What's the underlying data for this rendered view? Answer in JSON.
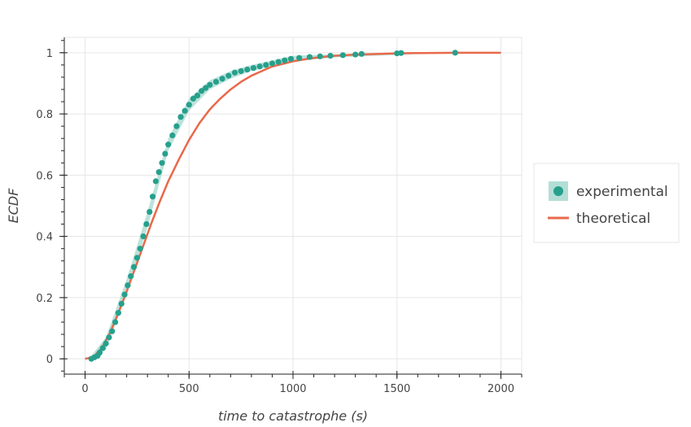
{
  "chart_data": {
    "type": "line",
    "xlabel": "time to catastrophe (s)",
    "ylabel": "ECDF",
    "xlim": [
      -100,
      2100
    ],
    "ylim": [
      -0.05,
      1.05
    ],
    "x_ticks": [
      0,
      500,
      1000,
      1500,
      2000
    ],
    "y_ticks": [
      0,
      0.2,
      0.4,
      0.6,
      0.8,
      1
    ],
    "x_tick_labels": [
      "0",
      "500",
      "1000",
      "1500",
      "2000"
    ],
    "y_tick_labels": [
      "0",
      "0.2",
      "0.4",
      "0.6",
      "0.8",
      "1"
    ],
    "grid": true,
    "legend_position": "right",
    "series": [
      {
        "name": "experimental",
        "kind": "scatter-with-band",
        "color": "#26a08c",
        "band_color": "#9fd6cc",
        "points": [
          [
            30,
            0.0
          ],
          [
            45,
            0.005
          ],
          [
            60,
            0.01
          ],
          [
            70,
            0.02
          ],
          [
            85,
            0.035
          ],
          [
            100,
            0.05
          ],
          [
            115,
            0.07
          ],
          [
            130,
            0.09
          ],
          [
            145,
            0.12
          ],
          [
            160,
            0.15
          ],
          [
            175,
            0.18
          ],
          [
            190,
            0.21
          ],
          [
            205,
            0.24
          ],
          [
            220,
            0.27
          ],
          [
            235,
            0.3
          ],
          [
            250,
            0.33
          ],
          [
            265,
            0.36
          ],
          [
            280,
            0.4
          ],
          [
            295,
            0.44
          ],
          [
            310,
            0.48
          ],
          [
            325,
            0.53
          ],
          [
            340,
            0.58
          ],
          [
            355,
            0.61
          ],
          [
            370,
            0.64
          ],
          [
            385,
            0.67
          ],
          [
            400,
            0.7
          ],
          [
            420,
            0.73
          ],
          [
            440,
            0.76
          ],
          [
            460,
            0.79
          ],
          [
            480,
            0.81
          ],
          [
            500,
            0.83
          ],
          [
            520,
            0.85
          ],
          [
            540,
            0.86
          ],
          [
            560,
            0.875
          ],
          [
            580,
            0.885
          ],
          [
            600,
            0.895
          ],
          [
            630,
            0.905
          ],
          [
            660,
            0.915
          ],
          [
            690,
            0.925
          ],
          [
            720,
            0.935
          ],
          [
            750,
            0.94
          ],
          [
            780,
            0.945
          ],
          [
            810,
            0.95
          ],
          [
            840,
            0.955
          ],
          [
            870,
            0.96
          ],
          [
            900,
            0.965
          ],
          [
            930,
            0.97
          ],
          [
            960,
            0.975
          ],
          [
            990,
            0.98
          ],
          [
            1030,
            0.983
          ],
          [
            1080,
            0.986
          ],
          [
            1130,
            0.988
          ],
          [
            1180,
            0.99
          ],
          [
            1240,
            0.992
          ],
          [
            1300,
            0.994
          ],
          [
            1330,
            0.996
          ],
          [
            1500,
            0.998
          ],
          [
            1520,
            0.999
          ],
          [
            1780,
            1.0
          ]
        ],
        "band_lower": [
          [
            30,
            0.0
          ],
          [
            100,
            0.03
          ],
          [
            200,
            0.21
          ],
          [
            300,
            0.43
          ],
          [
            400,
            0.68
          ],
          [
            500,
            0.81
          ],
          [
            600,
            0.88
          ],
          [
            700,
            0.915
          ],
          [
            800,
            0.94
          ],
          [
            900,
            0.955
          ],
          [
            1000,
            0.972
          ],
          [
            1200,
            0.985
          ],
          [
            1500,
            0.993
          ],
          [
            1780,
            1.0
          ]
        ],
        "band_upper": [
          [
            30,
            0.01
          ],
          [
            100,
            0.07
          ],
          [
            200,
            0.26
          ],
          [
            300,
            0.48
          ],
          [
            400,
            0.72
          ],
          [
            500,
            0.85
          ],
          [
            600,
            0.91
          ],
          [
            700,
            0.94
          ],
          [
            800,
            0.96
          ],
          [
            900,
            0.975
          ],
          [
            1000,
            0.99
          ],
          [
            1200,
            0.995
          ],
          [
            1500,
            1.0
          ],
          [
            1780,
            1.0
          ]
        ]
      },
      {
        "name": "theoretical",
        "kind": "line",
        "color": "#e8694a",
        "points": [
          [
            0,
            0.0
          ],
          [
            40,
            0.006
          ],
          [
            80,
            0.035
          ],
          [
            120,
            0.085
          ],
          [
            160,
            0.15
          ],
          [
            200,
            0.22
          ],
          [
            240,
            0.295
          ],
          [
            280,
            0.37
          ],
          [
            320,
            0.445
          ],
          [
            360,
            0.515
          ],
          [
            400,
            0.58
          ],
          [
            450,
            0.65
          ],
          [
            500,
            0.715
          ],
          [
            550,
            0.77
          ],
          [
            600,
            0.815
          ],
          [
            650,
            0.85
          ],
          [
            700,
            0.88
          ],
          [
            750,
            0.905
          ],
          [
            800,
            0.925
          ],
          [
            850,
            0.94
          ],
          [
            900,
            0.955
          ],
          [
            1000,
            0.972
          ],
          [
            1100,
            0.983
          ],
          [
            1200,
            0.99
          ],
          [
            1300,
            0.994
          ],
          [
            1400,
            0.996
          ],
          [
            1500,
            0.998
          ],
          [
            1600,
            0.999
          ],
          [
            1800,
            1.0
          ],
          [
            2000,
            1.0
          ]
        ]
      }
    ]
  }
}
